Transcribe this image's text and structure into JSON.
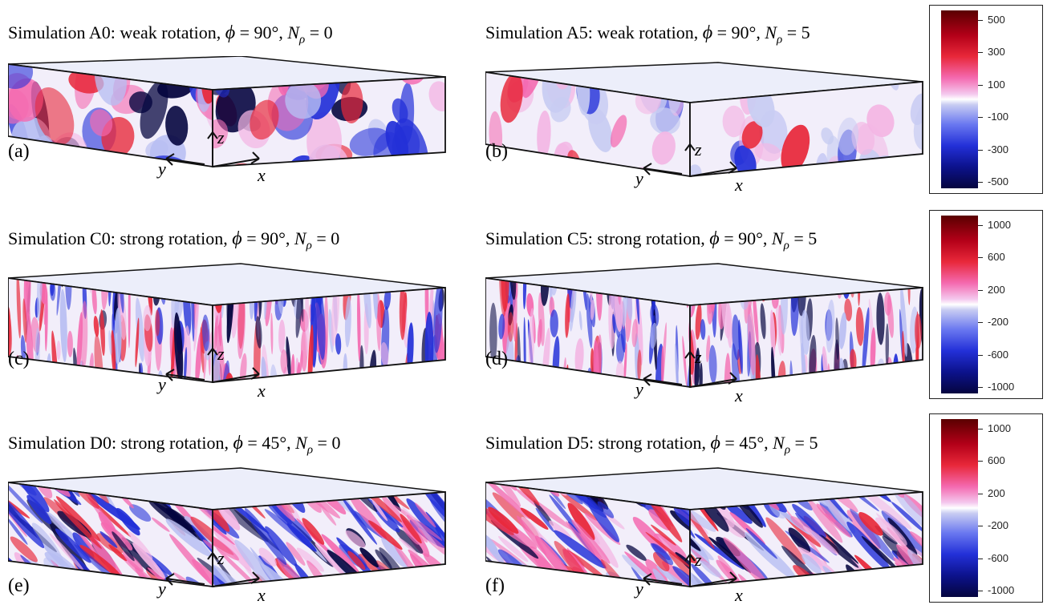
{
  "panels": [
    {
      "id": "a",
      "title_prefix": "Simulation A0: weak rotation, ",
      "phi_sym": "ϕ",
      "phi_val": " = 90°, ",
      "n_sym": "N",
      "n_sub": "ρ",
      "n_val": " = 0",
      "label": "(a)",
      "style": "weak"
    },
    {
      "id": "b",
      "title_prefix": "Simulation A5: weak rotation, ",
      "phi_sym": "ϕ",
      "phi_val": " = 90°, ",
      "n_sym": "N",
      "n_sub": "ρ",
      "n_val": " = 5",
      "label": "(b)",
      "style": "weak-light"
    },
    {
      "id": "c",
      "title_prefix": "Simulation C0: strong rotation, ",
      "phi_sym": "ϕ",
      "phi_val": " = 90°, ",
      "n_sym": "N",
      "n_sub": "ρ",
      "n_val": " = 0",
      "label": "(c)",
      "style": "vertical"
    },
    {
      "id": "d",
      "title_prefix": "Simulation C5: strong rotation, ",
      "phi_sym": "ϕ",
      "phi_val": " = 90°, ",
      "n_sym": "N",
      "n_sub": "ρ",
      "n_val": " = 5",
      "label": "(d)",
      "style": "vertical"
    },
    {
      "id": "e",
      "title_prefix": "Simulation D0: strong rotation, ",
      "phi_sym": "ϕ",
      "phi_val": " = 45°, ",
      "n_sym": "N",
      "n_sub": "ρ",
      "n_val": " = 0",
      "label": "(e)",
      "style": "tilted"
    },
    {
      "id": "f",
      "title_prefix": "Simulation D5: strong rotation, ",
      "phi_sym": "ϕ",
      "phi_val": " = 45°, ",
      "n_sym": "N",
      "n_sub": "ρ",
      "n_val": " = 5",
      "label": "(f)",
      "style": "tilted"
    }
  ],
  "axes": {
    "x": "x",
    "y": "y",
    "z": "z"
  },
  "colorbars": [
    {
      "ticks": [
        "500",
        "300",
        "100",
        "-100",
        "-300",
        "-500"
      ]
    },
    {
      "ticks": [
        "1000",
        "600",
        "200",
        "-200",
        "-600",
        "-1000"
      ]
    },
    {
      "ticks": [
        "1000",
        "600",
        "200",
        "-200",
        "-600",
        "-1000"
      ]
    }
  ],
  "colors": {
    "max": "#5a0000",
    "red": "#e8283a",
    "pink": "#f46ab0",
    "zero": "#ffffff",
    "blue": "#2330d8",
    "min": "#05053f"
  }
}
